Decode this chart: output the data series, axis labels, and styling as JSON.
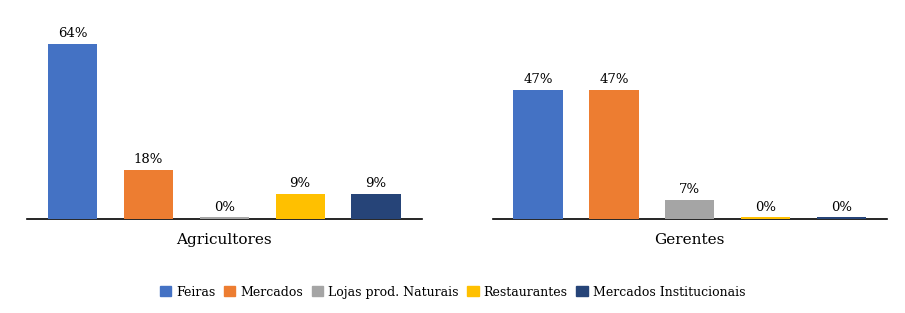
{
  "groups": [
    "Agricultores",
    "Gerentes"
  ],
  "categories": [
    "Feiras",
    "Mercados",
    "Lojas prod. Naturais",
    "Restaurantes",
    "Mercados Institucionais"
  ],
  "colors": [
    "#4472C4",
    "#ED7D31",
    "#A5A5A5",
    "#FFC000",
    "#264478"
  ],
  "values": {
    "Agricultores": [
      64,
      18,
      0,
      9,
      9
    ],
    "Gerentes": [
      47,
      47,
      7,
      0,
      0
    ]
  },
  "labels": {
    "Agricultores": [
      "64%",
      "18%",
      "0%",
      "9%",
      "9%"
    ],
    "Gerentes": [
      "47%",
      "47%",
      "7%",
      "0%",
      "0%"
    ]
  },
  "ylim": [
    0,
    72
  ],
  "bar_width": 0.65,
  "label_fontsize": 9.5,
  "legend_fontsize": 9,
  "xlabel_fontsize": 11
}
